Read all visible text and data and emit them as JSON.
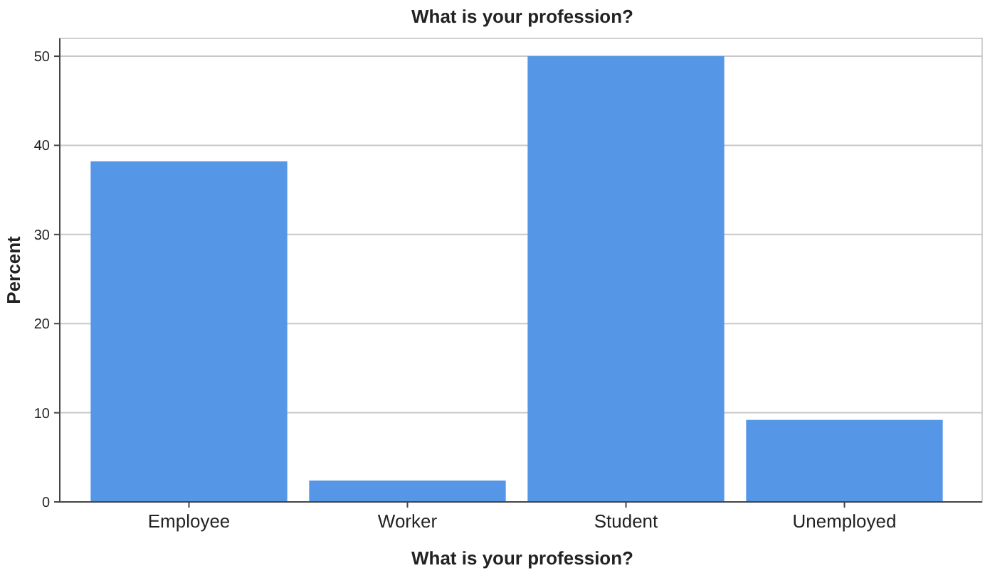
{
  "chart_data": {
    "type": "bar",
    "title": "What is your profession?",
    "xlabel": "What is your profession?",
    "ylabel": "Percent",
    "categories": [
      "Employee",
      "Worker",
      "Student",
      "Unemployed"
    ],
    "values": [
      38.2,
      2.4,
      50.0,
      9.2
    ],
    "color": "#5596e6",
    "ylim": [
      0,
      52
    ],
    "yticks": [
      0,
      10,
      20,
      30,
      40,
      50
    ],
    "grid": "y"
  }
}
